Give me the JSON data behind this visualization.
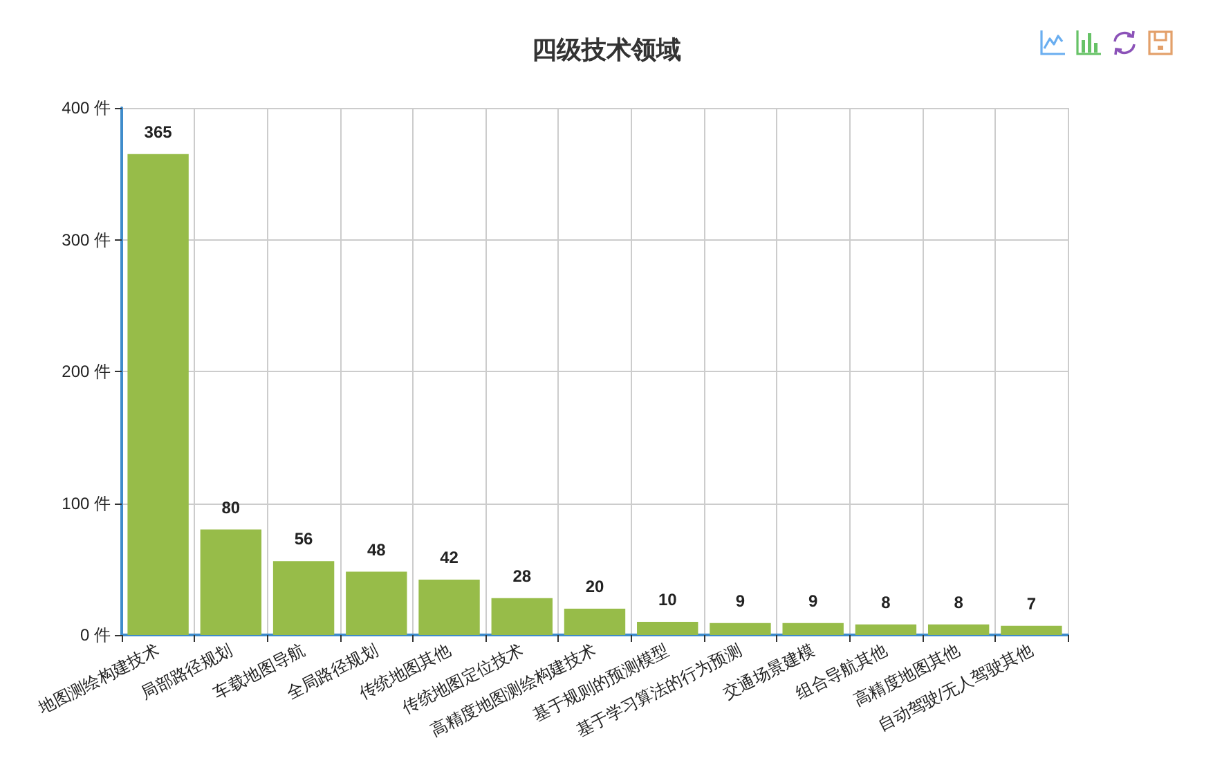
{
  "chart_data": {
    "type": "bar",
    "title": "四级技术领域",
    "categories": [
      "地图测绘构建技术",
      "局部路径规划",
      "车载地图导航",
      "全局路径规划",
      "传统地图其他",
      "传统地图定位技术",
      "高精度地图测绘构建技术",
      "基于规则的预测模型",
      "基于学习算法的行为预测",
      "交通场景建模",
      "组合导航其他",
      "高精度地图其他",
      "自动驾驶/无人驾驶其他"
    ],
    "values": [
      365,
      80,
      56,
      48,
      42,
      28,
      20,
      10,
      9,
      9,
      8,
      8,
      7
    ],
    "color": "#97bc49",
    "ylim": [
      0,
      400
    ],
    "yticks": [
      {
        "value": 0,
        "label": "0 件"
      },
      {
        "value": 100,
        "label": "100 件"
      },
      {
        "value": 200,
        "label": "200 件"
      },
      {
        "value": 300,
        "label": "300 件"
      },
      {
        "value": 400,
        "label": "400 件"
      }
    ],
    "grid": true,
    "data_labels": true
  }
}
